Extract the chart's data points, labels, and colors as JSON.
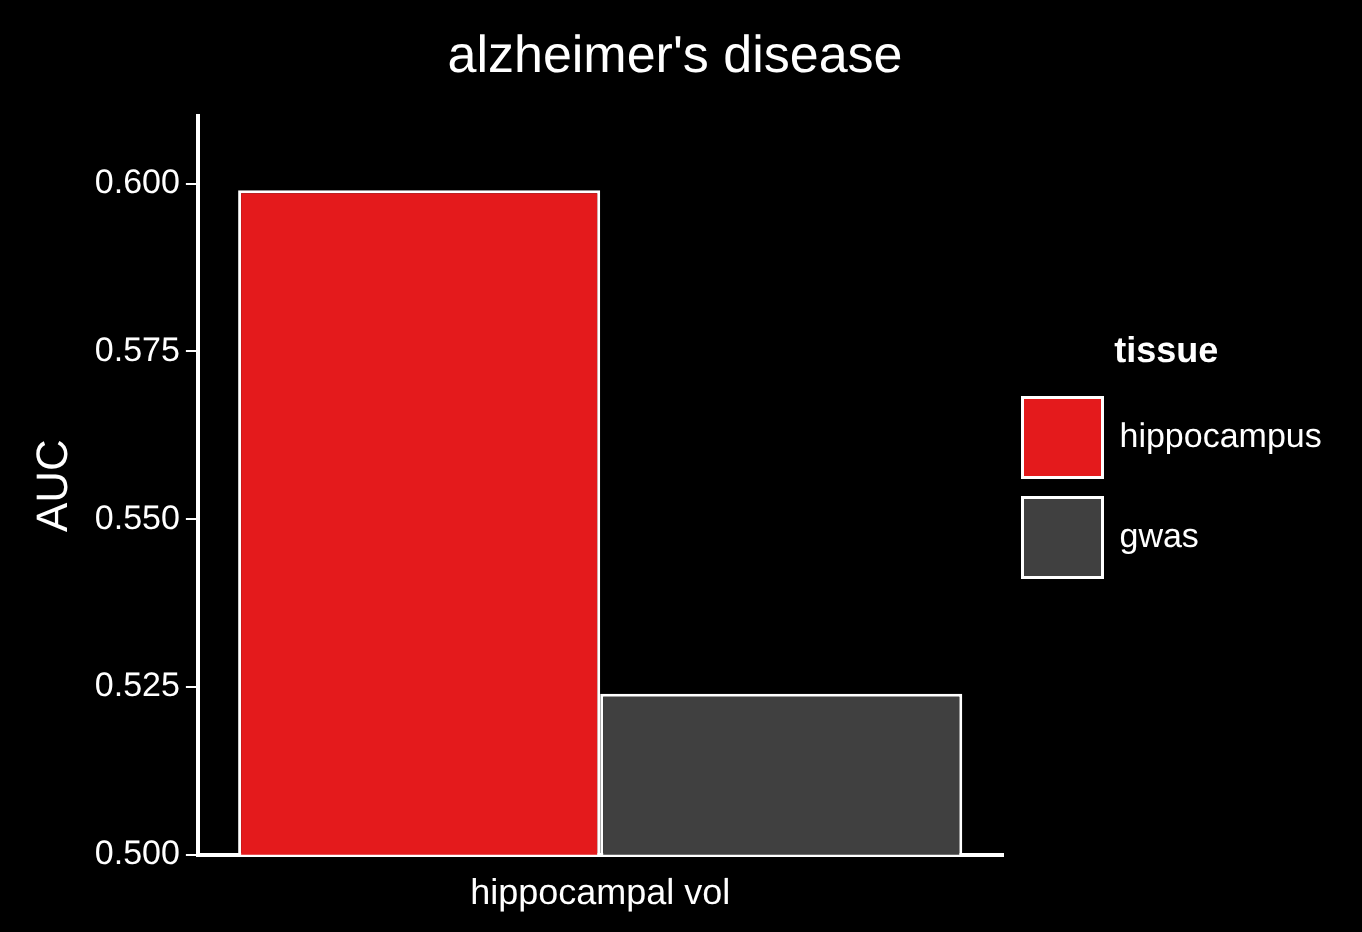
{
  "chart_data": {
    "type": "bar",
    "title": "alzheimer's disease",
    "ylabel": "AUC",
    "legend_title": "tissue",
    "categories": [
      "hippocampal vol"
    ],
    "series": [
      {
        "name": "hippocampus",
        "color": "#e41a1c",
        "values": [
          0.599
        ]
      },
      {
        "name": "gwas",
        "color": "#404040",
        "values": [
          0.524
        ]
      }
    ],
    "ylim": [
      0.5,
      0.61
    ],
    "yticks": [
      {
        "value": 0.5,
        "label": "0.500"
      },
      {
        "value": 0.525,
        "label": "0.525"
      },
      {
        "value": 0.55,
        "label": "0.550"
      },
      {
        "value": 0.575,
        "label": "0.575"
      },
      {
        "value": 0.6,
        "label": "0.600"
      }
    ],
    "grid": false,
    "legend": "right"
  }
}
